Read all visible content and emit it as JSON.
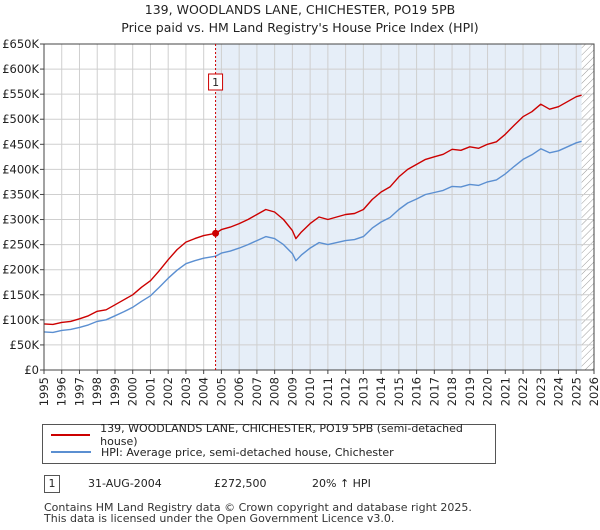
{
  "title_line1": "139, WOODLANDS LANE, CHICHESTER, PO19 5PB",
  "title_line2": "Price paid vs. HM Land Registry's House Price Index (HPI)",
  "chart_data": {
    "type": "line",
    "xlim": [
      1995,
      2026
    ],
    "ylim": [
      0,
      650000
    ],
    "y_ticks": [
      0,
      50000,
      100000,
      150000,
      200000,
      250000,
      300000,
      350000,
      400000,
      450000,
      500000,
      550000,
      600000,
      650000
    ],
    "y_tick_labels": [
      "£0",
      "£50K",
      "£100K",
      "£150K",
      "£200K",
      "£250K",
      "£300K",
      "£350K",
      "£400K",
      "£450K",
      "£500K",
      "£550K",
      "£600K",
      "£650K"
    ],
    "x_ticks": [
      1995,
      1996,
      1997,
      1998,
      1999,
      2000,
      2001,
      2002,
      2003,
      2004,
      2005,
      2006,
      2007,
      2008,
      2009,
      2010,
      2011,
      2012,
      2013,
      2014,
      2015,
      2016,
      2017,
      2018,
      2019,
      2020,
      2021,
      2022,
      2023,
      2024,
      2025,
      2026
    ],
    "grid": true,
    "shaded_regions": [
      [
        2004.67,
        2025.3
      ]
    ],
    "hatched_after": 2025.3,
    "series": [
      {
        "name": "139, WOODLANDS LANE, CHICHESTER, PO19 5PB (semi-detached house)",
        "color": "#cc0000",
        "x": [
          1995,
          1995.5,
          1996,
          1996.5,
          1997,
          1997.5,
          1998,
          1998.5,
          1999,
          1999.5,
          2000,
          2000.5,
          2001,
          2001.5,
          2002,
          2002.5,
          2003,
          2003.5,
          2004,
          2004.67,
          2005,
          2005.5,
          2006,
          2006.5,
          2007,
          2007.5,
          2008,
          2008.5,
          2009,
          2009.2,
          2009.5,
          2010,
          2010.5,
          2011,
          2011.5,
          2012,
          2012.5,
          2013,
          2013.5,
          2014,
          2014.5,
          2015,
          2015.5,
          2016,
          2016.5,
          2017,
          2017.5,
          2018,
          2018.5,
          2019,
          2019.5,
          2020,
          2020.5,
          2021,
          2021.5,
          2022,
          2022.5,
          2023,
          2023.5,
          2024,
          2024.5,
          2025,
          2025.3
        ],
        "y": [
          92000,
          91000,
          95000,
          97000,
          102000,
          108000,
          117000,
          120000,
          130000,
          140000,
          150000,
          165000,
          178000,
          198000,
          220000,
          240000,
          255000,
          262000,
          268000,
          272500,
          280000,
          285000,
          292000,
          300000,
          310000,
          320000,
          315000,
          300000,
          278000,
          262000,
          275000,
          292000,
          305000,
          300000,
          305000,
          310000,
          312000,
          320000,
          340000,
          355000,
          365000,
          385000,
          400000,
          410000,
          420000,
          425000,
          430000,
          440000,
          438000,
          445000,
          442000,
          450000,
          455000,
          470000,
          488000,
          505000,
          515000,
          530000,
          520000,
          525000,
          535000,
          545000,
          548000
        ]
      },
      {
        "name": "HPI: Average price, semi-detached house, Chichester",
        "color": "#5b8fd1",
        "x": [
          1995,
          1995.5,
          1996,
          1996.5,
          1997,
          1997.5,
          1998,
          1998.5,
          1999,
          1999.5,
          2000,
          2000.5,
          2001,
          2001.5,
          2002,
          2002.5,
          2003,
          2003.5,
          2004,
          2004.67,
          2005,
          2005.5,
          2006,
          2006.5,
          2007,
          2007.5,
          2008,
          2008.5,
          2009,
          2009.2,
          2009.5,
          2010,
          2010.5,
          2011,
          2011.5,
          2012,
          2012.5,
          2013,
          2013.5,
          2014,
          2014.5,
          2015,
          2015.5,
          2016,
          2016.5,
          2017,
          2017.5,
          2018,
          2018.5,
          2019,
          2019.5,
          2020,
          2020.5,
          2021,
          2021.5,
          2022,
          2022.5,
          2023,
          2023.5,
          2024,
          2024.5,
          2025,
          2025.3
        ],
        "y": [
          76000,
          75000,
          79000,
          81000,
          85000,
          90000,
          97000,
          100000,
          108000,
          116000,
          125000,
          137000,
          148000,
          165000,
          183000,
          199000,
          212000,
          218000,
          223000,
          227000,
          233000,
          237000,
          243000,
          250000,
          258000,
          266000,
          262000,
          250000,
          232000,
          218000,
          229000,
          243000,
          254000,
          250000,
          254000,
          258000,
          260000,
          266000,
          283000,
          295000,
          304000,
          320000,
          333000,
          341000,
          350000,
          354000,
          358000,
          366000,
          365000,
          370000,
          368000,
          375000,
          379000,
          391000,
          406000,
          420000,
          429000,
          441000,
          433000,
          437000,
          445000,
          453000,
          456000
        ]
      }
    ],
    "annotations": [
      {
        "label": "1",
        "x": 2004.67,
        "y": 272500
      }
    ]
  },
  "legend": {
    "property_label": "139, WOODLANDS LANE, CHICHESTER, PO19 5PB (semi-detached house)",
    "hpi_label": "HPI: Average price, semi-detached house, Chichester"
  },
  "sale": {
    "marker": "1",
    "date": "31-AUG-2004",
    "price": "£272,500",
    "hpi_change": "20% ↑ HPI"
  },
  "footer_line1": "Contains HM Land Registry data © Crown copyright and database right 2025.",
  "footer_line2": "This data is licensed under the Open Government Licence v3.0.",
  "colors": {
    "property": "#cc0000",
    "hpi": "#5b8fd1",
    "shade": "#e6eef8",
    "grid": "#cfcfcf"
  }
}
